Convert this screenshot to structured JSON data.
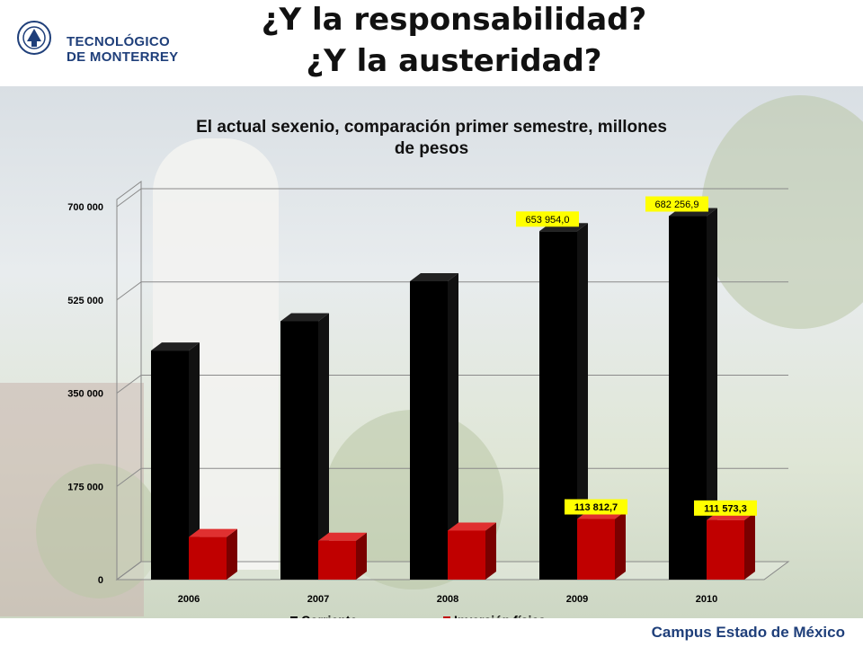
{
  "header": {
    "logo_line1": "TECNOLÓGICO",
    "logo_line2": "DE MONTERREY",
    "title_line1": "¿Y la responsabilidad?",
    "title_line2": "¿Y la austeridad?"
  },
  "footer": {
    "campus": "Campus Estado de México"
  },
  "colors": {
    "corriente": "#000000",
    "inversion": "#c00000",
    "label_bg": "#ffff00",
    "brand": "#1f3f7a"
  },
  "chart_data": {
    "type": "bar",
    "title": "El actual sexenio, comparación primer semestre, millones de pesos",
    "title_line1": "El actual sexenio, comparación primer semestre, millones",
    "title_line2": "de pesos",
    "categories": [
      "2006",
      "2007",
      "2008",
      "2009",
      "2010"
    ],
    "series": [
      {
        "name": "Corriente",
        "values": [
          430000,
          485000,
          560000,
          653954.0,
          682256.9
        ]
      },
      {
        "name": "Inversión física",
        "values": [
          80000,
          73000,
          92000,
          113812.7,
          111573.3
        ]
      }
    ],
    "data_labels": [
      {
        "series": 0,
        "index": 3,
        "text": "653 954,0"
      },
      {
        "series": 0,
        "index": 4,
        "text": "682 256,9"
      },
      {
        "series": 1,
        "index": 3,
        "text": "113 812,7"
      },
      {
        "series": 1,
        "index": 4,
        "text": "111 573,3"
      }
    ],
    "yticks": [
      0,
      175000,
      350000,
      525000,
      700000
    ],
    "ytick_labels": [
      "0",
      "175 000",
      "350 000",
      "525 000",
      "700 000"
    ],
    "ylim": [
      0,
      700000
    ],
    "grid": true,
    "legend": "bottom"
  }
}
